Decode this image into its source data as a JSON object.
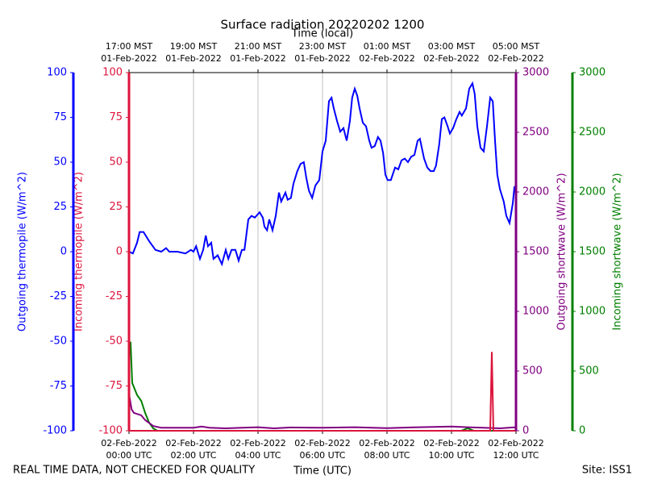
{
  "chart_data": {
    "type": "line",
    "title": "Surface radiation 20220202 1200",
    "top_xlabel": "Time (local)",
    "xlabel": "Time (UTC)",
    "xlim": [
      0,
      12
    ],
    "grid": true,
    "xticks": [
      {
        "value": 0,
        "label": [
          "02-Feb-2022",
          "00:00 UTC"
        ]
      },
      {
        "value": 2,
        "label": [
          "02-Feb-2022",
          "02:00 UTC"
        ]
      },
      {
        "value": 4,
        "label": [
          "02-Feb-2022",
          "04:00 UTC"
        ]
      },
      {
        "value": 6,
        "label": [
          "02-Feb-2022",
          "06:00 UTC"
        ]
      },
      {
        "value": 8,
        "label": [
          "02-Feb-2022",
          "08:00 UTC"
        ]
      },
      {
        "value": 10,
        "label": [
          "02-Feb-2022",
          "10:00 UTC"
        ]
      },
      {
        "value": 12,
        "label": [
          "02-Feb-2022",
          "12:00 UTC"
        ]
      }
    ],
    "top_xticks": [
      {
        "value": 0,
        "label": [
          "17:00 MST",
          "01-Feb-2022"
        ]
      },
      {
        "value": 2,
        "label": [
          "19:00 MST",
          "01-Feb-2022"
        ]
      },
      {
        "value": 4,
        "label": [
          "21:00 MST",
          "01-Feb-2022"
        ]
      },
      {
        "value": 6,
        "label": [
          "23:00 MST",
          "01-Feb-2022"
        ]
      },
      {
        "value": 8,
        "label": [
          "01:00 MST",
          "02-Feb-2022"
        ]
      },
      {
        "value": 10,
        "label": [
          "03:00 MST",
          "02-Feb-2022"
        ]
      },
      {
        "value": 12,
        "label": [
          "05:00 MST",
          "02-Feb-2022"
        ]
      }
    ],
    "yaxes": [
      {
        "label": "Outgoing thermopile (W/m^2)",
        "color": "#0000ff",
        "lim": [
          -100,
          100
        ],
        "ticks": [
          -100,
          -75,
          -50,
          -25,
          0,
          25,
          50,
          75,
          100
        ]
      },
      {
        "label": "Incoming thermopile (W/m^2)",
        "color": "#dc143c",
        "lim": [
          -100,
          100
        ],
        "ticks": [
          -100,
          -75,
          -50,
          -25,
          0,
          25,
          50,
          75,
          100
        ]
      },
      {
        "label": "Outgoing shortwave (W/m^2)",
        "color": "#800080",
        "lim": [
          0,
          3000
        ],
        "ticks": [
          0,
          500,
          1000,
          1500,
          2000,
          2500,
          3000
        ]
      },
      {
        "label": "Incoming shortwave (W/m^2)",
        "color": "#008000",
        "lim": [
          0,
          3000
        ],
        "ticks": [
          0,
          500,
          1000,
          1500,
          2000,
          2500,
          3000
        ]
      }
    ],
    "series": [
      {
        "name": "Outgoing thermopile",
        "color": "#0000ff",
        "axis": 0,
        "x": [
          0,
          0.12,
          0.25,
          0.33,
          0.45,
          0.62,
          0.82,
          1,
          1.15,
          1.25,
          1.5,
          1.75,
          1.92,
          2,
          2.08,
          2.2,
          2.3,
          2.38,
          2.45,
          2.55,
          2.62,
          2.75,
          2.88,
          3,
          3.08,
          3.18,
          3.3,
          3.4,
          3.5,
          3.58,
          3.7,
          3.8,
          3.9,
          4.05,
          4.15,
          4.2,
          4.28,
          4.35,
          4.45,
          4.55,
          4.65,
          4.72,
          4.85,
          4.92,
          5.02,
          5.1,
          5.22,
          5.32,
          5.42,
          5.5,
          5.58,
          5.68,
          5.78,
          5.9,
          6,
          6.1,
          6.2,
          6.28,
          6.35,
          6.45,
          6.55,
          6.65,
          6.75,
          6.85,
          6.92,
          7,
          7.08,
          7.15,
          7.25,
          7.35,
          7.45,
          7.52,
          7.62,
          7.72,
          7.8,
          7.88,
          7.95,
          8.02,
          8.12,
          8.25,
          8.35,
          8.45,
          8.55,
          8.65,
          8.75,
          8.85,
          8.95,
          9.02,
          9.15,
          9.25,
          9.35,
          9.45,
          9.52,
          9.62,
          9.7,
          9.78,
          9.88,
          9.95,
          10.05,
          10.15,
          10.25,
          10.32,
          10.45,
          10.55,
          10.65,
          10.72,
          10.8,
          10.9,
          11,
          11.1,
          11.2,
          11.28,
          11.35,
          11.42,
          11.5,
          11.62,
          11.7,
          11.8,
          11.9,
          11.95,
          12
        ],
        "values": [
          0,
          -1,
          5,
          11,
          11,
          6,
          1,
          0,
          2,
          0,
          0,
          -1,
          1,
          0,
          3,
          -4,
          1,
          9,
          3,
          5,
          -4,
          -2,
          -7,
          1,
          -4,
          1,
          1,
          -5,
          1,
          1,
          18,
          20,
          19,
          22,
          19,
          14,
          12,
          18,
          12,
          20,
          33,
          28,
          33,
          29,
          30,
          38,
          45,
          49,
          50,
          41,
          34,
          30,
          37,
          40,
          56,
          62,
          84,
          86,
          80,
          73,
          67,
          69,
          62,
          73,
          86,
          91,
          87,
          80,
          72,
          70,
          62,
          58,
          59,
          64,
          62,
          55,
          43,
          40,
          40,
          47,
          46,
          51,
          52,
          50,
          53,
          54,
          62,
          63,
          52,
          47,
          45,
          45,
          48,
          60,
          74,
          75,
          70,
          66,
          69,
          74,
          78,
          76,
          80,
          91,
          94,
          88,
          70,
          58,
          56,
          70,
          86,
          84,
          62,
          43,
          35,
          28,
          20,
          16,
          27,
          36,
          37
        ]
      },
      {
        "name": "Incoming thermopile",
        "color": "#dc143c",
        "axis": 1,
        "x": [
          0,
          11.2,
          11.25,
          11.3,
          12
        ],
        "values": [
          -100,
          -100,
          -56,
          -100,
          -100
        ]
      },
      {
        "name": "Outgoing shortwave",
        "color": "#800080",
        "axis": 2,
        "x": [
          0,
          0.08,
          0.15,
          0.38,
          0.5,
          0.75,
          1,
          2,
          2.25,
          2.5,
          3,
          3.5,
          4,
          4.5,
          5,
          6,
          7,
          8,
          9,
          10,
          10.5,
          11,
          11.5,
          12
        ],
        "values": [
          311,
          180,
          150,
          130,
          90,
          40,
          25,
          25,
          35,
          25,
          20,
          25,
          30,
          20,
          28,
          25,
          30,
          22,
          30,
          35,
          30,
          25,
          20,
          30
        ]
      },
      {
        "name": "Incoming shortwave",
        "color": "#008000",
        "axis": 3,
        "x": [
          0,
          0.05,
          0.1,
          0.25,
          0.38,
          0.5,
          0.62,
          0.75,
          0.88,
          2,
          6,
          10.3,
          10.5,
          10.7,
          12
        ],
        "values": [
          730,
          737,
          400,
          300,
          250,
          150,
          70,
          20,
          0,
          0,
          0,
          0,
          20,
          0,
          0
        ]
      }
    ]
  },
  "footer": {
    "left": "REAL TIME DATA, NOT CHECKED FOR QUALITY",
    "right": "Site: ISS1"
  }
}
